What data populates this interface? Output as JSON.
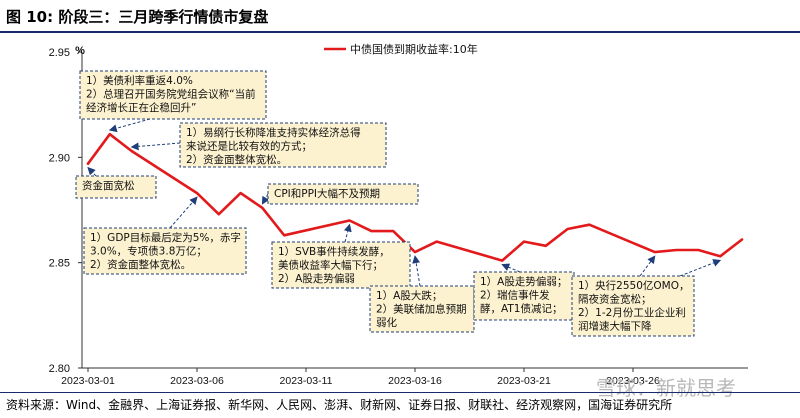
{
  "figure_title": "图 10:  阶段三：三月跨季行情债市复盘",
  "source_note": "资料来源：Wind、金融界、上海证券报、新华网、人民网、澎湃、财新网、证券日报、财联社、经济观察网，国海证券研究所",
  "watermark": "雪球：新就思考",
  "colors": {
    "line": "#e31a1c",
    "box_fill": "#fdf2d0",
    "box_border": "#1f3f7a",
    "arrow": "#1f3f7a"
  },
  "chart_data": {
    "type": "line",
    "title": "",
    "xlabel": "",
    "ylabel": "%",
    "ylim": [
      2.8,
      2.95
    ],
    "yticks": [
      "2.95",
      "2.90",
      "2.85",
      "2.80"
    ],
    "xticks": [
      "2023-03-01",
      "2023-03-06",
      "2023-03-11",
      "2023-03-16",
      "2023-03-21",
      "2023-03-26"
    ],
    "legend": "top-right",
    "series": [
      {
        "name": "中债国债到期收益率:10年",
        "x": [
          "2023-03-01",
          "2023-03-02",
          "2023-03-03",
          "2023-03-06",
          "2023-03-07",
          "2023-03-08",
          "2023-03-09",
          "2023-03-10",
          "2023-03-13",
          "2023-03-14",
          "2023-03-15",
          "2023-03-16",
          "2023-03-17",
          "2023-03-20",
          "2023-03-21",
          "2023-03-22",
          "2023-03-23",
          "2023-03-24",
          "2023-03-27",
          "2023-03-28",
          "2023-03-29",
          "2023-03-30",
          "2023-03-31"
        ],
        "values": [
          2.897,
          2.911,
          2.903,
          2.883,
          2.873,
          2.883,
          2.876,
          2.863,
          2.87,
          2.865,
          2.865,
          2.855,
          2.86,
          2.851,
          2.86,
          2.858,
          2.866,
          2.868,
          2.855,
          2.856,
          2.856,
          2.853,
          2.861
        ]
      }
    ],
    "annotations": [
      {
        "lines": [
          "1）美债利率重返4.0%",
          "2）总理召开国务院党组会议称“当前",
          "经济增长正在企稳回升”"
        ],
        "date": "2023-03-02",
        "style": "dashed"
      },
      {
        "lines": [
          "1）易纲行长称降准支持实体经济总得",
          "来说还是比较有效的方式；",
          "2）资金面整体宽松。"
        ],
        "date": "2023-03-03",
        "style": "dashed"
      },
      {
        "lines": [
          "资金面宽松"
        ],
        "date": "2023-03-01",
        "style": "dashed"
      },
      {
        "lines": [
          "CPI和PPI大幅不及预期"
        ],
        "date": "2023-03-10",
        "style": "dashed"
      },
      {
        "lines": [
          "1）GDP目标最后定为5%，赤字",
          "3.0%，专项债3.8万亿；",
          "2）资金面整体宽松。"
        ],
        "date": "2023-03-07",
        "style": "dashed"
      },
      {
        "lines": [
          "1）SVB事件持续发酵，",
          "美债收益率大幅下行；",
          "2）A股走势偏弱"
        ],
        "date": "2023-03-13",
        "style": "dashed"
      },
      {
        "lines": [
          "1）A股大跌；",
          "2）美联储加息预期",
          "弱化"
        ],
        "date": "2023-03-16",
        "style": "dashed"
      },
      {
        "lines": [
          "1）A股走势偏弱；",
          "2）瑞信事件发",
          "酵，AT1债减记；"
        ],
        "date": "2023-03-20",
        "style": "dashed"
      },
      {
        "lines": [
          "1）央行2550亿OMO，",
          "隔夜资金宽松；",
          "2）1-2月份工业企业利",
          "润增速大幅下降"
        ],
        "date": "2023-03-28",
        "style": "dashed"
      }
    ]
  }
}
